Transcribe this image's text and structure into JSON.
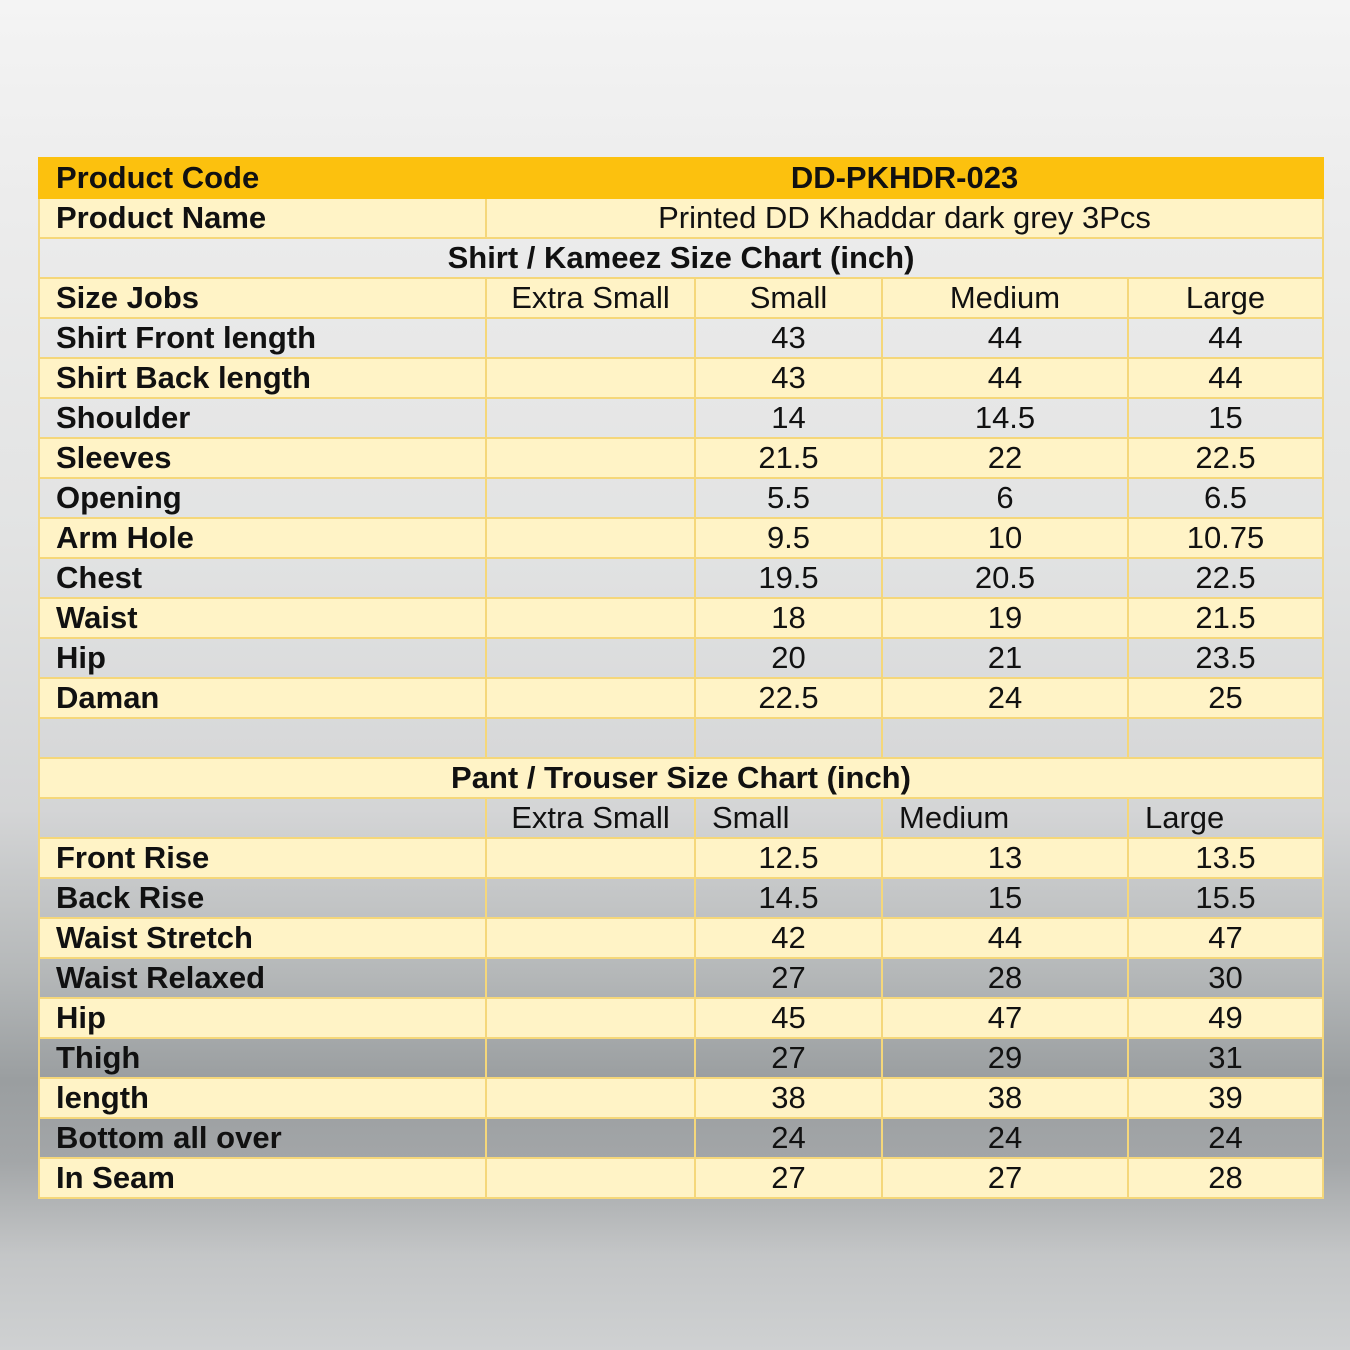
{
  "product_code": {
    "label": "Product Code",
    "value": "DD-PKHDR-023"
  },
  "product_name": {
    "label": "Product Name",
    "value": "Printed DD Khaddar dark grey 3Pcs"
  },
  "shirt": {
    "title": "Shirt / Kameez Size Chart (inch)",
    "header": [
      "Size Jobs",
      "Extra Small",
      "Small",
      "Medium",
      "Large"
    ],
    "rows": [
      [
        "Shirt Front length",
        "",
        "43",
        "44",
        "44"
      ],
      [
        "Shirt Back length",
        "",
        "43",
        "44",
        "44"
      ],
      [
        "Shoulder",
        "",
        "14",
        "14.5",
        "15"
      ],
      [
        "Sleeves",
        "",
        "21.5",
        "22",
        "22.5"
      ],
      [
        "Opening",
        "",
        "5.5",
        "6",
        "6.5"
      ],
      [
        "Arm Hole",
        "",
        "9.5",
        "10",
        "10.75"
      ],
      [
        "Chest",
        "",
        "19.5",
        "20.5",
        "22.5"
      ],
      [
        "Waist",
        "",
        "18",
        "19",
        "21.5"
      ],
      [
        "Hip",
        "",
        "20",
        "21",
        "23.5"
      ],
      [
        "Daman",
        "",
        "22.5",
        "24",
        "25"
      ]
    ]
  },
  "pant": {
    "title": "Pant / Trouser Size Chart (inch)",
    "header": [
      "",
      "Extra Small",
      "Small",
      "Medium",
      "Large"
    ],
    "rows": [
      [
        "Front Rise",
        "",
        "12.5",
        "13",
        "13.5"
      ],
      [
        "Back Rise",
        "",
        "14.5",
        "15",
        "15.5"
      ],
      [
        "Waist Stretch",
        "",
        "42",
        "44",
        "47"
      ],
      [
        "Waist Relaxed",
        "",
        "27",
        "28",
        "30"
      ],
      [
        "Hip",
        "",
        "45",
        "47",
        "49"
      ],
      [
        "Thigh",
        "",
        "27",
        "29",
        "31"
      ],
      [
        "length",
        "",
        "38",
        "38",
        "39"
      ],
      [
        "Bottom all over",
        "",
        "24",
        "24",
        "24"
      ],
      [
        "In Seam",
        "",
        "27",
        "27",
        "28"
      ]
    ]
  },
  "colors": {
    "accent": "#fcc10e",
    "row": "#fff3c6",
    "border": "#f5d77a"
  }
}
